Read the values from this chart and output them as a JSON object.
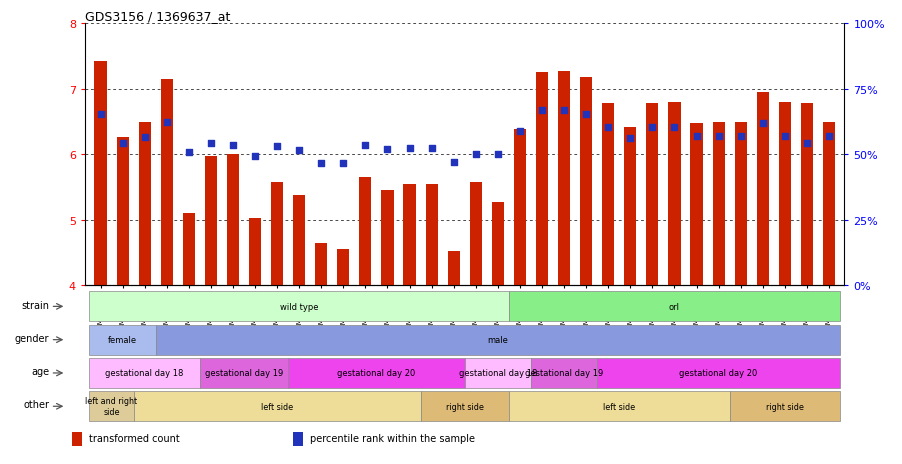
{
  "title": "GDS3156 / 1369637_at",
  "samples": [
    "GSM187635",
    "GSM187636",
    "GSM187637",
    "GSM187638",
    "GSM187639",
    "GSM187640",
    "GSM187641",
    "GSM187642",
    "GSM187643",
    "GSM187644",
    "GSM187645",
    "GSM187646",
    "GSM187647",
    "GSM187648",
    "GSM187649",
    "GSM187650",
    "GSM187651",
    "GSM187652",
    "GSM187653",
    "GSM187654",
    "GSM187655",
    "GSM187656",
    "GSM187657",
    "GSM187658",
    "GSM187659",
    "GSM187660",
    "GSM187661",
    "GSM187662",
    "GSM187663",
    "GSM187664",
    "GSM187665",
    "GSM187666",
    "GSM187667",
    "GSM187668"
  ],
  "bar_values": [
    7.42,
    6.27,
    6.49,
    7.15,
    5.1,
    5.97,
    6.0,
    5.02,
    5.57,
    5.38,
    4.65,
    4.55,
    5.65,
    5.46,
    5.55,
    5.55,
    4.52,
    5.58,
    5.27,
    6.38,
    7.25,
    7.27,
    7.18,
    6.78,
    6.42,
    6.78,
    6.8,
    6.48,
    6.49,
    6.5,
    6.95,
    6.8,
    6.78,
    6.5
  ],
  "dot_values": [
    6.62,
    6.18,
    6.27,
    6.5,
    6.04,
    6.17,
    6.14,
    5.97,
    6.12,
    6.07,
    5.87,
    5.87,
    6.14,
    6.08,
    6.1,
    6.09,
    5.88,
    6.0,
    6.0,
    6.36,
    6.68,
    6.68,
    6.62,
    6.42,
    6.25,
    6.42,
    6.42,
    6.28,
    6.28,
    6.28,
    6.48,
    6.28,
    6.18,
    6.28
  ],
  "ylim": [
    4,
    8
  ],
  "yticks_left": [
    4,
    5,
    6,
    7,
    8
  ],
  "yticks_right": [
    0,
    25,
    50,
    75,
    100
  ],
  "bar_color": "#cc2200",
  "dot_color": "#2233bb",
  "bg_color": "#ffffff",
  "strain_spans": [
    {
      "label": "wild type",
      "start": 0,
      "end": 19,
      "color": "#ccffcc"
    },
    {
      "label": "orl",
      "start": 19,
      "end": 34,
      "color": "#88ee88"
    }
  ],
  "gender_spans": [
    {
      "label": "female",
      "start": 0,
      "end": 3,
      "color": "#aabbee"
    },
    {
      "label": "male",
      "start": 3,
      "end": 34,
      "color": "#8899dd"
    }
  ],
  "age_spans": [
    {
      "label": "gestational day 18",
      "start": 0,
      "end": 5,
      "color": "#ffbbff"
    },
    {
      "label": "gestational day 19",
      "start": 5,
      "end": 9,
      "color": "#dd66dd"
    },
    {
      "label": "gestational day 20",
      "start": 9,
      "end": 17,
      "color": "#ee44ee"
    },
    {
      "label": "gestational day 18",
      "start": 17,
      "end": 20,
      "color": "#ffbbff"
    },
    {
      "label": "gestational day 19",
      "start": 20,
      "end": 23,
      "color": "#dd66dd"
    },
    {
      "label": "gestational day 20",
      "start": 23,
      "end": 34,
      "color": "#ee44ee"
    }
  ],
  "other_spans": [
    {
      "label": "left and right\nside",
      "start": 0,
      "end": 2,
      "color": "#ddcc99"
    },
    {
      "label": "left side",
      "start": 2,
      "end": 15,
      "color": "#eedd99"
    },
    {
      "label": "right side",
      "start": 15,
      "end": 19,
      "color": "#ddbb77"
    },
    {
      "label": "left side",
      "start": 19,
      "end": 29,
      "color": "#eedd99"
    },
    {
      "label": "right side",
      "start": 29,
      "end": 34,
      "color": "#ddbb77"
    }
  ],
  "row_labels": [
    "strain",
    "gender",
    "age",
    "other"
  ],
  "legend_items": [
    {
      "label": "transformed count",
      "color": "#cc2200",
      "marker": "s"
    },
    {
      "label": "percentile rank within the sample",
      "color": "#2233bb",
      "marker": "s"
    }
  ]
}
